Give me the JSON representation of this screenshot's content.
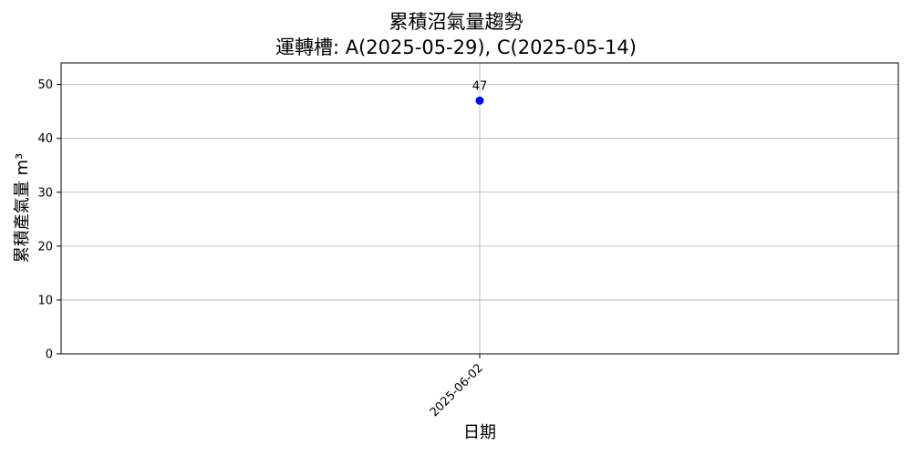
{
  "chart_data": {
    "type": "scatter",
    "title": "累積沼氣量趨勢",
    "subtitle": "運轉槽: A(2025-05-29), C(2025-05-14)",
    "xlabel": "日期",
    "ylabel": "累積產氣量 m³",
    "x": [
      "2025-06-02"
    ],
    "values": [
      47
    ],
    "data_labels": [
      "47"
    ],
    "ylim": [
      0,
      54
    ],
    "yticks": [
      0,
      10,
      20,
      30,
      40,
      50
    ],
    "grid": true,
    "point_color": "#0000ff",
    "grid_color": "#b0b0b0"
  }
}
